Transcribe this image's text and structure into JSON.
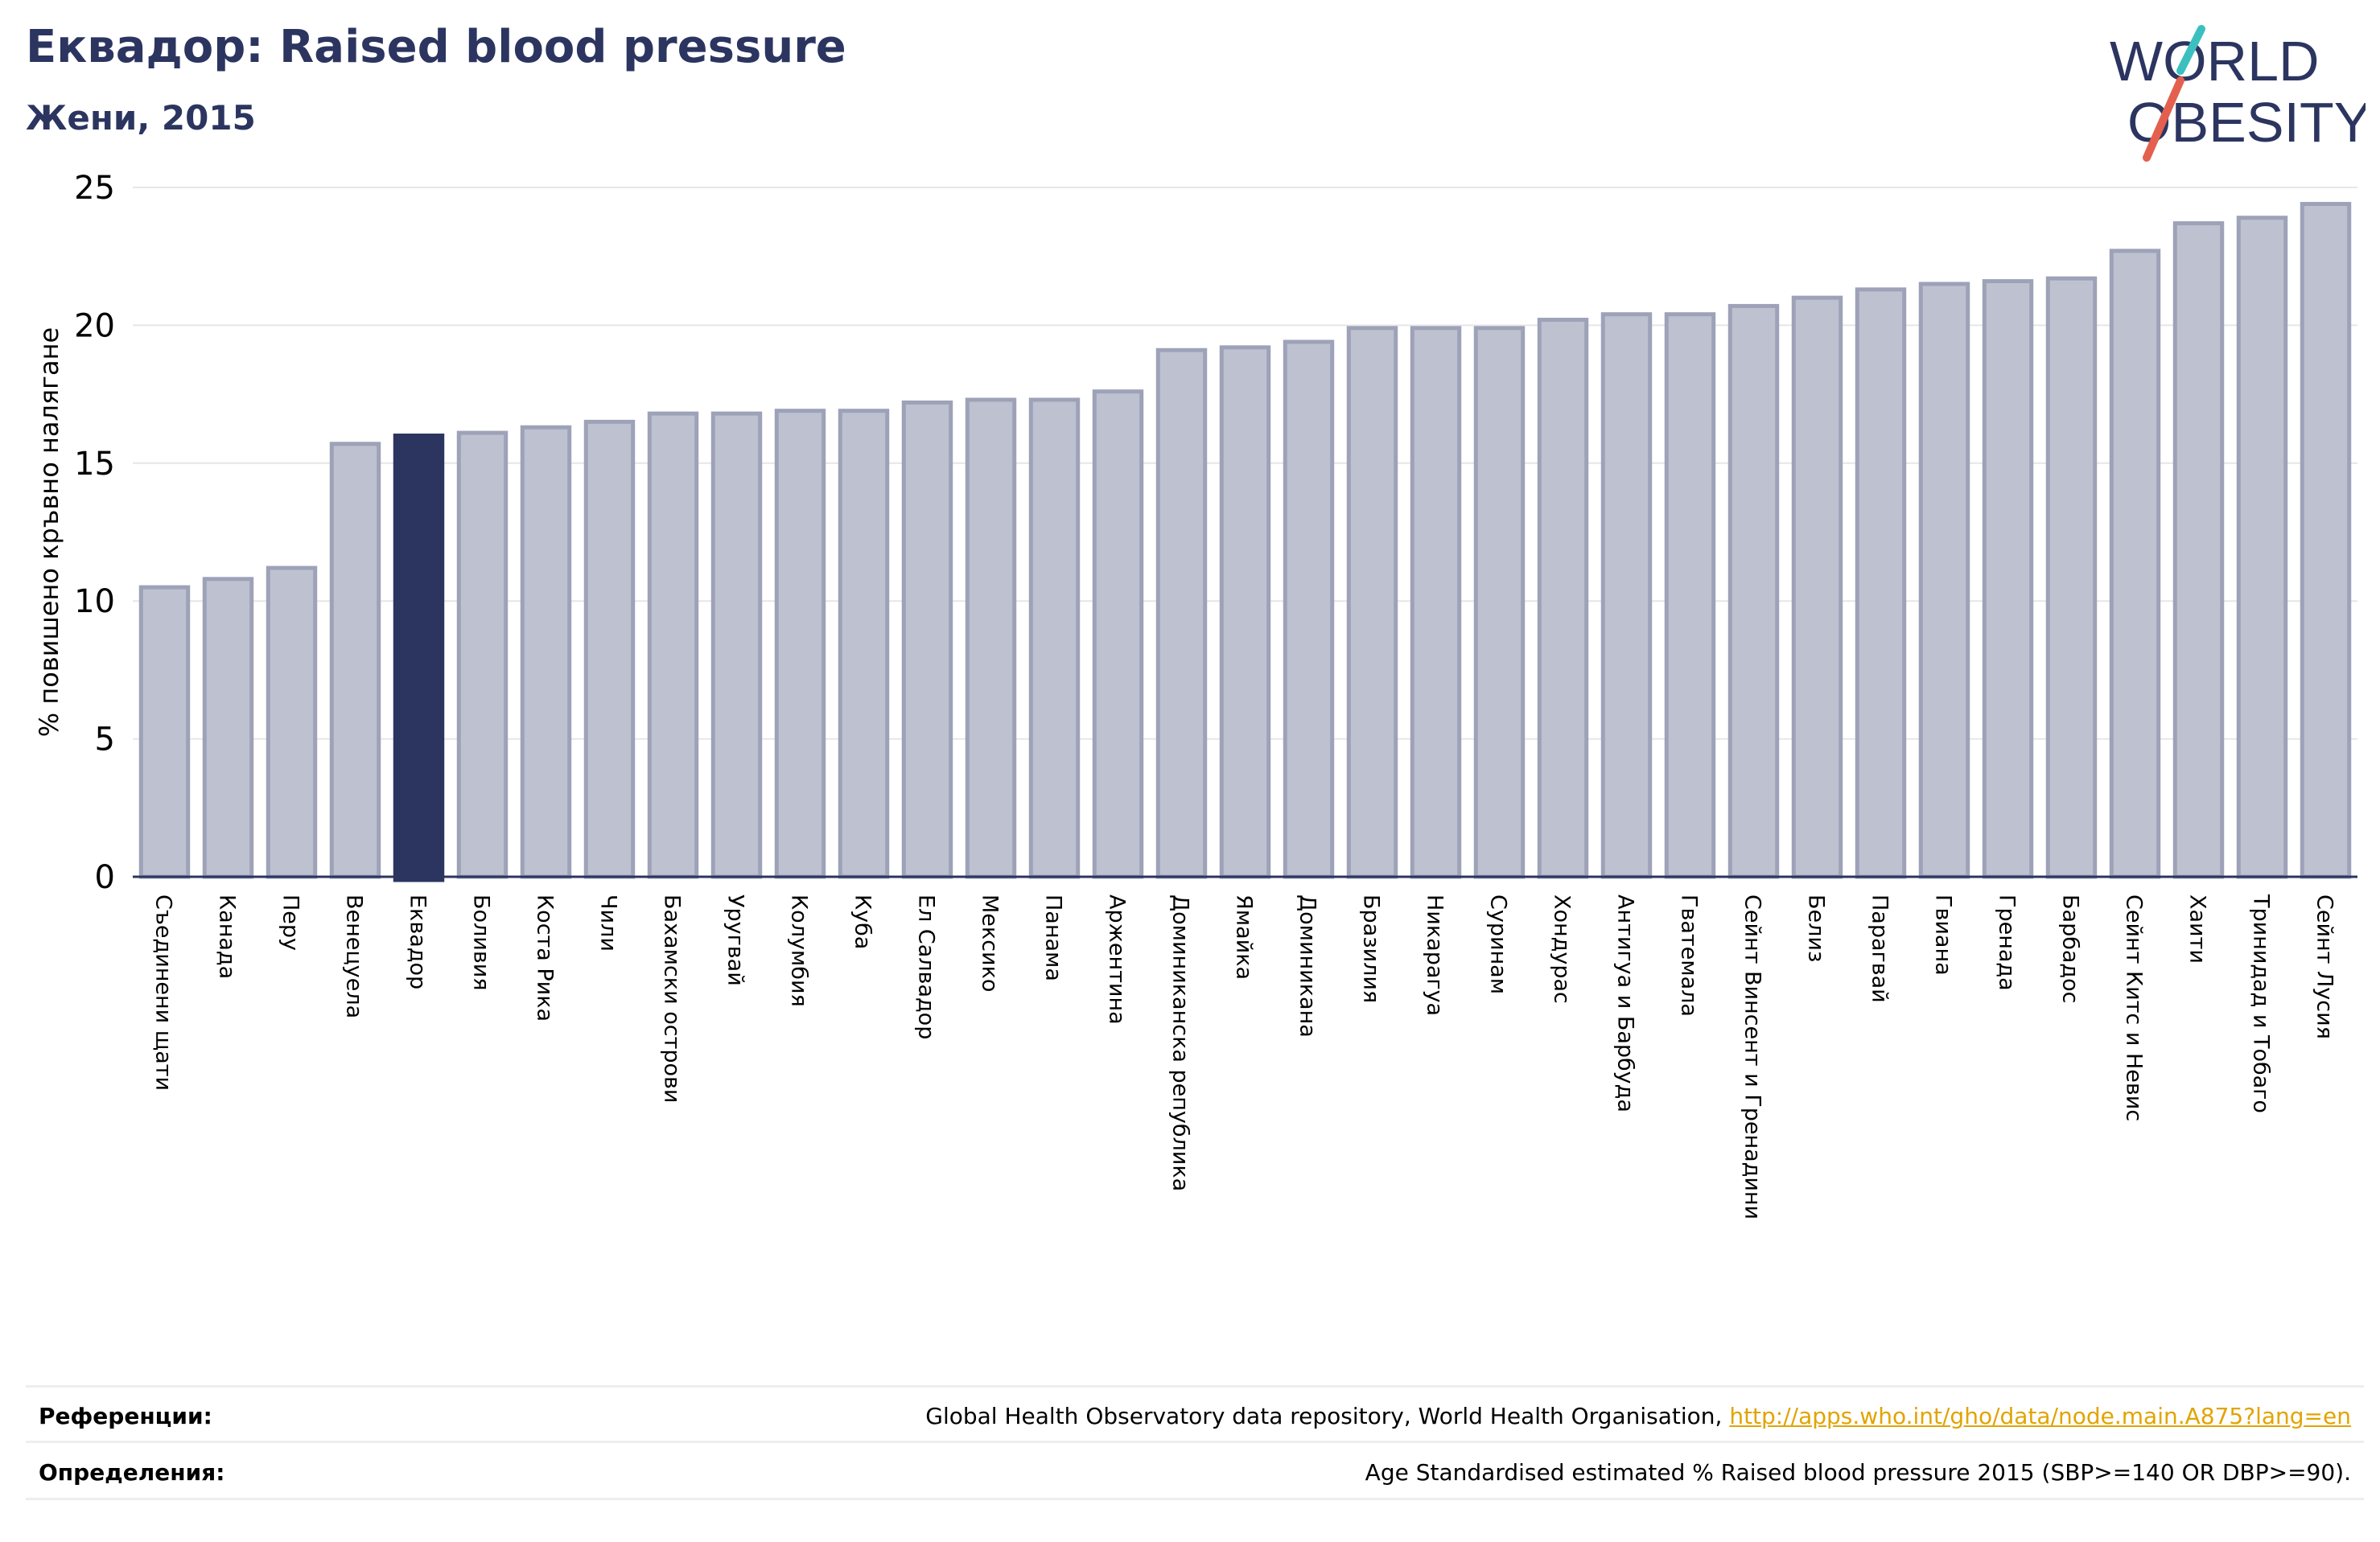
{
  "header": {
    "title": "Еквадор: Raised blood pressure",
    "subtitle": "Жени, 2015"
  },
  "logo": {
    "line1": "WORLD",
    "line2": "OBESITY",
    "accent_teal": "#3bbfbf",
    "accent_red": "#e4604e",
    "text_color": "#2b3560"
  },
  "colors": {
    "bar_fill": "#bec1cf",
    "bar_stroke": "#9ea2b8",
    "highlight_fill": "#2b3560",
    "axis": "#2b3560",
    "grid": "#e6e6e6"
  },
  "chart_data": {
    "type": "bar",
    "title": "",
    "xlabel": "",
    "ylabel": "% повишено кръвно налягане",
    "ylim": [
      0,
      25
    ],
    "yticks": [
      0,
      5,
      10,
      15,
      20,
      25
    ],
    "grid": true,
    "highlight": "Еквадор",
    "categories": [
      "Съединени щати",
      "Канада",
      "Перу",
      "Венецуела",
      "Еквадор",
      "Боливия",
      "Коста Рика",
      "Чили",
      "Бахамски острови",
      "Уругвай",
      "Колумбия",
      "Куба",
      "Ел Салвадор",
      "Мексико",
      "Панама",
      "Аржентина",
      "Доминиканска република",
      "Ямайка",
      "Доминикана",
      "Бразилия",
      "Никарагуа",
      "Суринам",
      "Хондурас",
      "Антигуа и Барбуда",
      "Гватемала",
      "Сейнт Винсент и Гренадини",
      "Белиз",
      "Парагвай",
      "Гвиана",
      "Гренада",
      "Барбадос",
      "Сейнт Китс и Невис",
      "Хаити",
      "Тринидад и Тобаго",
      "Сейнт Лусия"
    ],
    "values": [
      10.5,
      10.8,
      11.2,
      15.7,
      16.0,
      16.1,
      16.3,
      16.5,
      16.8,
      16.8,
      16.9,
      16.9,
      17.2,
      17.3,
      17.3,
      17.6,
      19.1,
      19.2,
      19.4,
      19.9,
      19.9,
      19.9,
      20.2,
      20.4,
      20.4,
      20.7,
      21.0,
      21.3,
      21.5,
      21.6,
      21.7,
      22.7,
      23.7,
      23.9,
      24.4
    ]
  },
  "footer": {
    "references_label": "Референции:",
    "references_text": "Global Health Observatory data repository, World Health Organisation, ",
    "references_link": "http://apps.who.int/gho/data/node.main.A875?lang=en",
    "definitions_label": "Определения:",
    "definitions_text": "Age Standardised estimated % Raised blood pressure 2015 (SBP>=140 OR DBP>=90)."
  }
}
